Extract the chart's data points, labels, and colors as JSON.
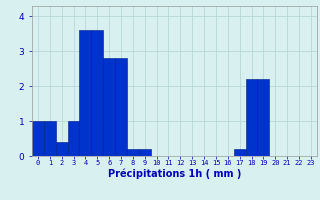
{
  "values": [
    1.0,
    1.0,
    0.4,
    1.0,
    3.6,
    3.6,
    2.8,
    2.8,
    0.2,
    0.2,
    0.0,
    0.0,
    0.0,
    0.0,
    0.0,
    0.0,
    0.0,
    0.2,
    2.2,
    2.2,
    0.0,
    0.0,
    0.0,
    0.0
  ],
  "categories": [
    "0",
    "1",
    "2",
    "3",
    "4",
    "5",
    "6",
    "7",
    "8",
    "9",
    "10",
    "11",
    "12",
    "13",
    "14",
    "15",
    "16",
    "17",
    "18",
    "19",
    "20",
    "21",
    "22",
    "23"
  ],
  "bar_color": "#0033cc",
  "bar_edge_color": "#001a88",
  "background_color": "#d8f0f0",
  "grid_color": "#b8d8d8",
  "xlabel": "Précipitations 1h ( mm )",
  "xlabel_color": "#0000bb",
  "tick_color": "#0000bb",
  "ylim": [
    0,
    4.3
  ],
  "yticks": [
    0,
    1,
    2,
    3,
    4
  ]
}
